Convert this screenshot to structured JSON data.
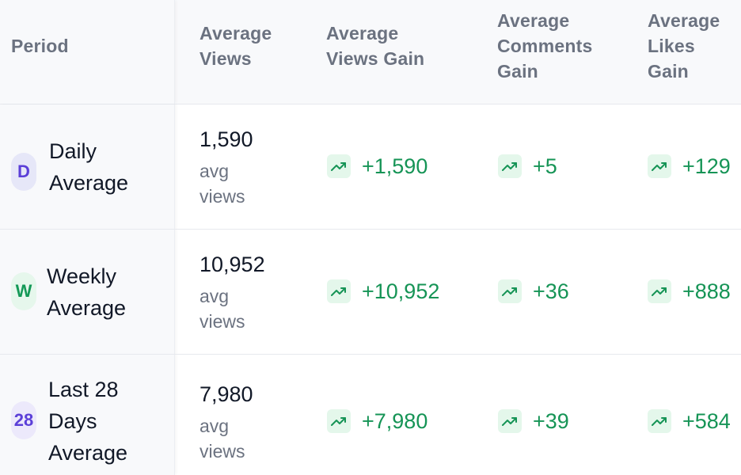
{
  "header": {
    "period": "Period",
    "avg_views": [
      "Average",
      "Views"
    ],
    "avg_views_gain": [
      "Average",
      "Views Gain"
    ],
    "avg_comments_gain": [
      "Average",
      "Comments",
      "Gain"
    ],
    "avg_likes_gain": [
      "Average",
      "Likes",
      "Gain"
    ]
  },
  "rows": [
    {
      "badge": "D",
      "period": [
        "Daily",
        "Average"
      ],
      "views": "1,590",
      "views_sub": [
        "avg",
        "views"
      ],
      "views_gain": "+1,590",
      "comments_gain": "+5",
      "likes_gain": "+129"
    },
    {
      "badge": "W",
      "period": [
        "Weekly",
        "Average"
      ],
      "views": "10,952",
      "views_sub": [
        "avg",
        "views"
      ],
      "views_gain": "+10,952",
      "comments_gain": "+36",
      "likes_gain": "+888"
    },
    {
      "badge": "28",
      "period": [
        "Last 28",
        "Days",
        "Average"
      ],
      "views": "7,980",
      "views_sub": [
        "avg",
        "views"
      ],
      "views_gain": "+7,980",
      "comments_gain": "+39",
      "likes_gain": "+584"
    }
  ],
  "colors": {
    "gain_green": "#169456",
    "badge_purple": "#5b3fd8",
    "badge_green": "#149957"
  },
  "icons": {
    "trend": "trending-up-icon"
  }
}
